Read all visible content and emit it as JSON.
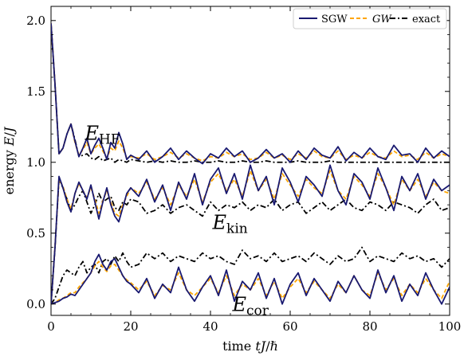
{
  "chart_data": {
    "type": "line",
    "xlabel": "time tJ/ℏ",
    "ylabel": "energy E/J",
    "xlim": [
      0,
      100
    ],
    "ylim": [
      -0.08,
      2.1
    ],
    "xticks": [
      0,
      20,
      40,
      60,
      80,
      100
    ],
    "xtick_labels": [
      "0",
      "20",
      "40",
      "60",
      "80",
      "100"
    ],
    "yticks": [
      0.0,
      0.5,
      1.0,
      1.5,
      2.0
    ],
    "ytick_labels": [
      "0.0",
      "0.5",
      "1.0",
      "1.5",
      "2.0"
    ],
    "grid": false,
    "legend_position": "top-right",
    "legend": [
      {
        "label": "SGW",
        "italic": false,
        "color": "#191970",
        "dash": "solid"
      },
      {
        "label": "GW",
        "italic": true,
        "color": "#FFA500",
        "dash": "dashed"
      },
      {
        "label": "exact",
        "italic": false,
        "color": "#000000",
        "dash": "dashdot"
      }
    ],
    "annotations": [
      {
        "main": "E",
        "sub": "HF",
        "x": 8.5,
        "y": 1.16
      },
      {
        "main": "E",
        "sub": "kin",
        "x": 40.5,
        "y": 0.53
      },
      {
        "main": "E",
        "sub": "cor",
        "x": 45.5,
        "y": -0.05
      }
    ],
    "series": [
      {
        "group": "E_HF",
        "method": "SGW",
        "color": "#191970",
        "dash": "solid",
        "x": [
          0,
          1,
          2,
          3,
          4,
          5,
          6,
          7,
          8,
          9,
          10,
          11,
          12,
          13,
          14,
          15,
          16,
          17,
          18,
          19,
          20,
          22,
          24,
          26,
          28,
          30,
          32,
          34,
          36,
          38,
          40,
          42,
          44,
          46,
          48,
          50,
          52,
          54,
          56,
          58,
          60,
          62,
          64,
          66,
          68,
          70,
          72,
          74,
          76,
          78,
          80,
          82,
          84,
          86,
          88,
          90,
          92,
          94,
          96,
          98,
          100
        ],
        "y": [
          1.98,
          1.55,
          1.06,
          1.1,
          1.2,
          1.27,
          1.15,
          1.04,
          1.1,
          1.17,
          1.06,
          1.12,
          1.17,
          1.1,
          1.02,
          1.14,
          1.1,
          1.21,
          1.13,
          1.02,
          1.05,
          1.02,
          1.08,
          1.0,
          1.04,
          1.1,
          1.02,
          1.08,
          1.03,
          0.99,
          1.06,
          1.03,
          1.1,
          1.04,
          1.08,
          1.0,
          1.03,
          1.09,
          1.03,
          1.06,
          1.0,
          1.08,
          1.02,
          1.1,
          1.05,
          1.03,
          1.11,
          1.01,
          1.07,
          1.03,
          1.1,
          1.04,
          1.02,
          1.12,
          1.05,
          1.06,
          1.0,
          1.1,
          1.03,
          1.08,
          1.04
        ]
      },
      {
        "group": "E_HF",
        "method": "GW",
        "color": "#FFA500",
        "dash": "dashed",
        "x": [
          0,
          1,
          2,
          3,
          4,
          5,
          6,
          7,
          8,
          9,
          10,
          11,
          12,
          13,
          14,
          15,
          16,
          17,
          18,
          19,
          20,
          22,
          24,
          26,
          28,
          30,
          32,
          34,
          36,
          38,
          40,
          42,
          44,
          46,
          48,
          50,
          52,
          54,
          56,
          58,
          60,
          62,
          64,
          66,
          68,
          70,
          72,
          74,
          76,
          78,
          80,
          82,
          84,
          86,
          88,
          90,
          92,
          94,
          96,
          98,
          100
        ],
        "y": [
          1.98,
          1.55,
          1.06,
          1.1,
          1.2,
          1.27,
          1.14,
          1.05,
          1.09,
          1.14,
          1.06,
          1.1,
          1.13,
          1.08,
          1.03,
          1.1,
          1.08,
          1.15,
          1.1,
          1.03,
          1.04,
          1.03,
          1.06,
          1.02,
          1.04,
          1.07,
          1.03,
          1.06,
          1.03,
          1.01,
          1.04,
          1.03,
          1.07,
          1.04,
          1.06,
          1.02,
          1.03,
          1.07,
          1.03,
          1.05,
          1.02,
          1.06,
          1.03,
          1.08,
          1.04,
          1.03,
          1.08,
          1.02,
          1.05,
          1.03,
          1.07,
          1.04,
          1.03,
          1.08,
          1.04,
          1.05,
          1.02,
          1.07,
          1.03,
          1.06,
          1.04
        ]
      },
      {
        "group": "E_HF",
        "method": "exact",
        "color": "#000000",
        "dash": "dashdot",
        "x": [
          0,
          1,
          2,
          3,
          4,
          5,
          6,
          7,
          8,
          9,
          10,
          11,
          12,
          13,
          14,
          15,
          16,
          17,
          18,
          19,
          20,
          22,
          24,
          26,
          28,
          30,
          32,
          34,
          36,
          38,
          40,
          42,
          44,
          46,
          48,
          50,
          52,
          54,
          56,
          58,
          60,
          62,
          64,
          66,
          68,
          70,
          72,
          74,
          76,
          78,
          80,
          82,
          84,
          86,
          88,
          90,
          92,
          94,
          96,
          98,
          100
        ],
        "y": [
          1.98,
          1.55,
          1.06,
          1.1,
          1.2,
          1.27,
          1.16,
          1.04,
          1.05,
          1.06,
          1.03,
          1.02,
          1.04,
          1.01,
          1.02,
          1.03,
          1.0,
          1.02,
          1.01,
          1.0,
          1.02,
          1.01,
          1.0,
          1.01,
          1.0,
          1.01,
          1.0,
          1.0,
          1.01,
          1.0,
          1.0,
          1.01,
          1.0,
          1.0,
          1.01,
          1.0,
          1.0,
          1.01,
          1.0,
          1.0,
          1.0,
          1.01,
          1.0,
          1.0,
          1.0,
          1.01,
          1.0,
          1.0,
          1.0,
          1.0,
          1.0,
          1.0,
          1.0,
          1.0,
          1.0,
          1.0,
          1.0,
          1.0,
          1.0,
          1.0,
          1.0
        ]
      },
      {
        "group": "E_kin",
        "method": "SGW",
        "color": "#191970",
        "dash": "solid",
        "x": [
          0,
          1,
          2,
          3,
          4,
          5,
          6,
          7,
          8,
          9,
          10,
          11,
          12,
          13,
          14,
          15,
          16,
          17,
          18,
          19,
          20,
          22,
          24,
          26,
          28,
          30,
          32,
          34,
          36,
          38,
          40,
          42,
          44,
          46,
          48,
          50,
          52,
          54,
          56,
          58,
          60,
          62,
          64,
          66,
          68,
          70,
          72,
          74,
          76,
          78,
          80,
          82,
          84,
          86,
          88,
          90,
          92,
          94,
          96,
          98,
          100
        ],
        "y": [
          0.0,
          0.4,
          0.9,
          0.82,
          0.72,
          0.65,
          0.78,
          0.86,
          0.8,
          0.74,
          0.84,
          0.72,
          0.6,
          0.72,
          0.82,
          0.7,
          0.62,
          0.58,
          0.68,
          0.78,
          0.82,
          0.76,
          0.88,
          0.72,
          0.84,
          0.66,
          0.86,
          0.74,
          0.92,
          0.7,
          0.88,
          0.96,
          0.78,
          0.92,
          0.74,
          0.98,
          0.8,
          0.9,
          0.7,
          0.96,
          0.86,
          0.72,
          0.9,
          0.84,
          0.76,
          0.98,
          0.8,
          0.7,
          0.92,
          0.86,
          0.74,
          0.96,
          0.82,
          0.66,
          0.9,
          0.8,
          0.92,
          0.74,
          0.88,
          0.8,
          0.84
        ]
      },
      {
        "group": "E_kin",
        "method": "GW",
        "color": "#FFA500",
        "dash": "dashed",
        "x": [
          0,
          1,
          2,
          3,
          4,
          5,
          6,
          7,
          8,
          9,
          10,
          11,
          12,
          13,
          14,
          15,
          16,
          17,
          18,
          19,
          20,
          22,
          24,
          26,
          28,
          30,
          32,
          34,
          36,
          38,
          40,
          42,
          44,
          46,
          48,
          50,
          52,
          54,
          56,
          58,
          60,
          62,
          64,
          66,
          68,
          70,
          72,
          74,
          76,
          78,
          80,
          82,
          84,
          86,
          88,
          90,
          92,
          94,
          96,
          98,
          100
        ],
        "y": [
          0.0,
          0.4,
          0.88,
          0.83,
          0.74,
          0.67,
          0.78,
          0.85,
          0.8,
          0.75,
          0.82,
          0.74,
          0.64,
          0.73,
          0.8,
          0.72,
          0.64,
          0.62,
          0.7,
          0.76,
          0.82,
          0.78,
          0.86,
          0.74,
          0.82,
          0.7,
          0.84,
          0.76,
          0.88,
          0.72,
          0.86,
          0.92,
          0.8,
          0.88,
          0.76,
          0.94,
          0.8,
          0.88,
          0.74,
          0.92,
          0.84,
          0.76,
          0.88,
          0.82,
          0.78,
          0.94,
          0.8,
          0.74,
          0.9,
          0.84,
          0.76,
          0.92,
          0.82,
          0.7,
          0.88,
          0.8,
          0.88,
          0.76,
          0.86,
          0.8,
          0.78
        ]
      },
      {
        "group": "E_kin",
        "method": "exact",
        "color": "#000000",
        "dash": "dashdot",
        "x": [
          0,
          1,
          2,
          3,
          4,
          5,
          6,
          7,
          8,
          9,
          10,
          11,
          12,
          13,
          14,
          15,
          16,
          17,
          18,
          19,
          20,
          22,
          24,
          26,
          28,
          30,
          32,
          34,
          36,
          38,
          40,
          42,
          44,
          46,
          48,
          50,
          52,
          54,
          56,
          58,
          60,
          62,
          64,
          66,
          68,
          70,
          72,
          74,
          76,
          78,
          80,
          82,
          84,
          86,
          88,
          90,
          92,
          94,
          96,
          98,
          100
        ],
        "y": [
          0.0,
          0.4,
          0.88,
          0.82,
          0.74,
          0.66,
          0.7,
          0.76,
          0.8,
          0.72,
          0.64,
          0.7,
          0.78,
          0.72,
          0.74,
          0.76,
          0.68,
          0.66,
          0.72,
          0.7,
          0.74,
          0.72,
          0.64,
          0.66,
          0.7,
          0.64,
          0.68,
          0.7,
          0.66,
          0.62,
          0.72,
          0.66,
          0.7,
          0.68,
          0.72,
          0.66,
          0.7,
          0.68,
          0.74,
          0.66,
          0.7,
          0.72,
          0.64,
          0.68,
          0.72,
          0.66,
          0.7,
          0.74,
          0.68,
          0.66,
          0.72,
          0.7,
          0.66,
          0.72,
          0.7,
          0.68,
          0.64,
          0.7,
          0.74,
          0.66,
          0.68
        ]
      },
      {
        "group": "E_cor",
        "method": "SGW",
        "color": "#191970",
        "dash": "solid",
        "x": [
          0,
          1,
          2,
          3,
          4,
          5,
          6,
          7,
          8,
          9,
          10,
          11,
          12,
          13,
          14,
          15,
          16,
          17,
          18,
          19,
          20,
          22,
          24,
          26,
          28,
          30,
          32,
          34,
          36,
          38,
          40,
          42,
          44,
          46,
          48,
          50,
          52,
          54,
          56,
          58,
          60,
          62,
          64,
          66,
          68,
          70,
          72,
          74,
          76,
          78,
          80,
          82,
          84,
          86,
          88,
          90,
          92,
          94,
          96,
          98,
          100
        ],
        "y": [
          0.0,
          0.01,
          0.02,
          0.04,
          0.05,
          0.07,
          0.06,
          0.1,
          0.14,
          0.18,
          0.22,
          0.3,
          0.35,
          0.28,
          0.24,
          0.3,
          0.32,
          0.26,
          0.2,
          0.16,
          0.14,
          0.08,
          0.18,
          0.04,
          0.14,
          0.08,
          0.26,
          0.1,
          0.02,
          0.12,
          0.2,
          0.06,
          0.24,
          0.02,
          0.16,
          0.1,
          0.22,
          0.04,
          0.18,
          0.0,
          0.14,
          0.22,
          0.06,
          0.18,
          0.1,
          0.02,
          0.16,
          0.08,
          0.2,
          0.1,
          0.04,
          0.24,
          0.08,
          0.2,
          0.02,
          0.14,
          0.06,
          0.22,
          0.1,
          0.0,
          0.12
        ]
      },
      {
        "group": "E_cor",
        "method": "GW",
        "color": "#FFA500",
        "dash": "dashed",
        "x": [
          0,
          1,
          2,
          3,
          4,
          5,
          6,
          7,
          8,
          9,
          10,
          11,
          12,
          13,
          14,
          15,
          16,
          17,
          18,
          19,
          20,
          22,
          24,
          26,
          28,
          30,
          32,
          34,
          36,
          38,
          40,
          42,
          44,
          46,
          48,
          50,
          52,
          54,
          56,
          58,
          60,
          62,
          64,
          66,
          68,
          70,
          72,
          74,
          76,
          78,
          80,
          82,
          84,
          86,
          88,
          90,
          92,
          94,
          96,
          98,
          100
        ],
        "y": [
          0.0,
          0.01,
          0.03,
          0.04,
          0.06,
          0.08,
          0.08,
          0.12,
          0.15,
          0.18,
          0.22,
          0.27,
          0.3,
          0.26,
          0.23,
          0.27,
          0.28,
          0.24,
          0.2,
          0.17,
          0.15,
          0.1,
          0.16,
          0.06,
          0.13,
          0.1,
          0.22,
          0.1,
          0.06,
          0.12,
          0.18,
          0.08,
          0.2,
          0.06,
          0.14,
          0.1,
          0.18,
          0.06,
          0.16,
          0.04,
          0.12,
          0.18,
          0.08,
          0.16,
          0.1,
          0.04,
          0.14,
          0.08,
          0.2,
          0.1,
          0.06,
          0.22,
          0.1,
          0.18,
          0.06,
          0.14,
          0.08,
          0.18,
          0.1,
          0.04,
          0.16
        ]
      },
      {
        "group": "E_cor",
        "method": "exact",
        "color": "#000000",
        "dash": "dashdot",
        "x": [
          0,
          1,
          2,
          3,
          4,
          5,
          6,
          7,
          8,
          9,
          10,
          11,
          12,
          13,
          14,
          15,
          16,
          17,
          18,
          19,
          20,
          22,
          24,
          26,
          28,
          30,
          32,
          34,
          36,
          38,
          40,
          42,
          44,
          46,
          48,
          50,
          52,
          54,
          56,
          58,
          60,
          62,
          64,
          66,
          68,
          70,
          72,
          74,
          76,
          78,
          80,
          82,
          84,
          86,
          88,
          90,
          92,
          94,
          96,
          98,
          100
        ],
        "y": [
          0.0,
          0.04,
          0.12,
          0.2,
          0.24,
          0.22,
          0.2,
          0.26,
          0.3,
          0.22,
          0.26,
          0.28,
          0.22,
          0.3,
          0.32,
          0.28,
          0.34,
          0.3,
          0.36,
          0.3,
          0.26,
          0.28,
          0.36,
          0.32,
          0.36,
          0.3,
          0.34,
          0.32,
          0.3,
          0.36,
          0.32,
          0.34,
          0.3,
          0.28,
          0.38,
          0.32,
          0.34,
          0.3,
          0.36,
          0.3,
          0.32,
          0.34,
          0.3,
          0.36,
          0.32,
          0.28,
          0.34,
          0.3,
          0.32,
          0.4,
          0.3,
          0.34,
          0.32,
          0.3,
          0.36,
          0.32,
          0.34,
          0.3,
          0.32,
          0.26,
          0.32
        ]
      }
    ]
  }
}
